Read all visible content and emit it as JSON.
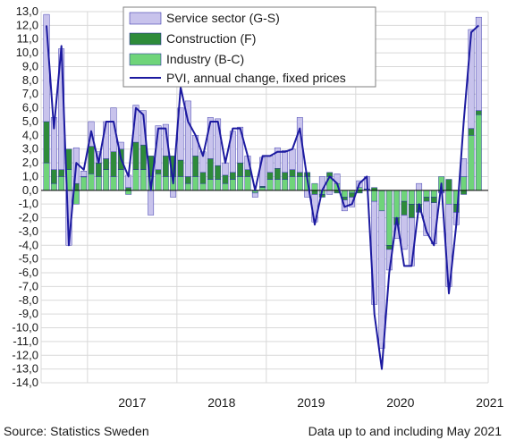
{
  "chart_data": {
    "type": "bar",
    "stacked": true,
    "ylim": [
      -14,
      13
    ],
    "y_ticks": [
      "13,0",
      "12,0",
      "11,0",
      "10,0",
      "9,0",
      "8,0",
      "7,0",
      "6,0",
      "5,0",
      "4,0",
      "3,0",
      "2,0",
      "1,0",
      "0,0",
      "-1,0",
      "-2,0",
      "-3,0",
      "-4,0",
      "-5,0",
      "-6,0",
      "-7,0",
      "-8,0",
      "-9,0",
      "-10,0",
      "-11,0",
      "-12,0",
      "-13,0",
      "-14,0"
    ],
    "year_labels": [
      "2017",
      "2018",
      "2019",
      "2020",
      "2021"
    ],
    "grid": true,
    "legend_position": "top-center",
    "periods": [
      "2016-07",
      "2016-08",
      "2016-09",
      "2016-10",
      "2016-11",
      "2016-12",
      "2017-01",
      "2017-02",
      "2017-03",
      "2017-04",
      "2017-05",
      "2017-06",
      "2017-07",
      "2017-08",
      "2017-09",
      "2017-10",
      "2017-11",
      "2017-12",
      "2018-01",
      "2018-02",
      "2018-03",
      "2018-04",
      "2018-05",
      "2018-06",
      "2018-07",
      "2018-08",
      "2018-09",
      "2018-10",
      "2018-11",
      "2018-12",
      "2019-01",
      "2019-02",
      "2019-03",
      "2019-04",
      "2019-05",
      "2019-06",
      "2019-07",
      "2019-08",
      "2019-09",
      "2019-10",
      "2019-11",
      "2019-12",
      "2020-01",
      "2020-02",
      "2020-03",
      "2020-04",
      "2020-05",
      "2020-06",
      "2020-07",
      "2020-08",
      "2020-09",
      "2020-10",
      "2020-11",
      "2020-12",
      "2021-01",
      "2021-02",
      "2021-03",
      "2021-04",
      "2021-05"
    ],
    "series": [
      {
        "name": "Industry (B-C)",
        "color": "#6fd47a",
        "kind": "bar",
        "values": [
          2.0,
          0.5,
          1.0,
          1.5,
          -1.0,
          1.0,
          1.2,
          1.0,
          1.5,
          1.0,
          1.5,
          -0.3,
          1.5,
          1.5,
          1.0,
          1.2,
          1.0,
          1.0,
          1.0,
          0.5,
          1.0,
          0.5,
          0.8,
          0.8,
          0.5,
          0.8,
          1.0,
          1.0,
          -0.2,
          0.2,
          0.8,
          0.8,
          0.8,
          1.0,
          1.0,
          1.0,
          0.5,
          -0.3,
          1.0,
          0.5,
          -0.5,
          -0.2,
          0.2,
          0.1,
          -0.8,
          -1.5,
          -4.0,
          -2.0,
          -0.8,
          -1.0,
          -1.0,
          -0.5,
          -0.5,
          1.0,
          -1.0,
          -1.0,
          1.0,
          4.0,
          5.5
        ]
      },
      {
        "name": "Construction (F)",
        "color": "#2e8b3a",
        "kind": "bar",
        "values": [
          3.0,
          1.0,
          0.5,
          1.5,
          0.5,
          0.0,
          2.0,
          1.0,
          0.8,
          1.8,
          1.5,
          0.2,
          2.0,
          1.8,
          1.5,
          0.3,
          1.5,
          1.5,
          1.2,
          0.5,
          1.5,
          0.8,
          1.5,
          1.0,
          0.6,
          0.5,
          1.0,
          0.5,
          0.0,
          0.1,
          0.5,
          0.8,
          0.5,
          0.5,
          0.3,
          0.3,
          -0.3,
          -0.2,
          0.3,
          -0.2,
          -0.2,
          -0.3,
          -0.2,
          0.0,
          0.2,
          0.0,
          -0.3,
          -0.5,
          -1.0,
          -1.0,
          -0.6,
          -0.3,
          -0.4,
          -0.1,
          0.8,
          -0.6,
          -0.3,
          0.5,
          0.3
        ]
      },
      {
        "name": "Service sector (G-S)",
        "color": "#c8c3ec",
        "kind": "bar",
        "values": [
          7.8,
          3.8,
          8.8,
          -4.0,
          2.6,
          0.4,
          1.8,
          0.8,
          2.7,
          3.2,
          0.5,
          0.9,
          2.7,
          2.5,
          -1.8,
          3.2,
          2.3,
          -0.5,
          3.8,
          5.5,
          1.5,
          1.5,
          3.0,
          3.4,
          0.9,
          3.0,
          2.6,
          1.0,
          -0.3,
          2.1,
          1.2,
          1.5,
          1.6,
          1.5,
          4.0,
          -0.5,
          -2.0,
          1.0,
          -0.3,
          0.7,
          -0.8,
          -0.7,
          0.5,
          0.9,
          -7.5,
          -10.0,
          -1.5,
          -1.0,
          -2.5,
          -3.5,
          0.5,
          -2.5,
          -3.0,
          -0.1,
          -6.0,
          -0.9,
          1.3,
          7.2,
          6.8
        ]
      },
      {
        "name": "PVI, annual change, fixed prices",
        "color": "#1c1aa0",
        "kind": "line",
        "values": [
          12.0,
          4.5,
          10.5,
          -4.0,
          2.0,
          1.5,
          4.3,
          2.0,
          5.0,
          5.0,
          2.3,
          1.0,
          6.0,
          5.5,
          0.0,
          4.5,
          4.5,
          0.5,
          7.5,
          5.0,
          4.0,
          2.5,
          5.0,
          5.0,
          2.0,
          4.5,
          4.5,
          2.5,
          0.0,
          2.5,
          2.5,
          2.8,
          2.8,
          3.0,
          4.5,
          0.8,
          -2.5,
          0.0,
          1.0,
          0.5,
          -1.2,
          -1.0,
          0.5,
          1.0,
          -9.0,
          -13.0,
          -6.0,
          -2.0,
          -5.5,
          -5.5,
          -1.0,
          -3.0,
          -4.0,
          0.5,
          -7.5,
          -2.5,
          5.0,
          11.5,
          12.0
        ]
      }
    ]
  },
  "footer": {
    "source": "Source: Statistics Sweden",
    "note": "Data up to and including May 2021"
  }
}
